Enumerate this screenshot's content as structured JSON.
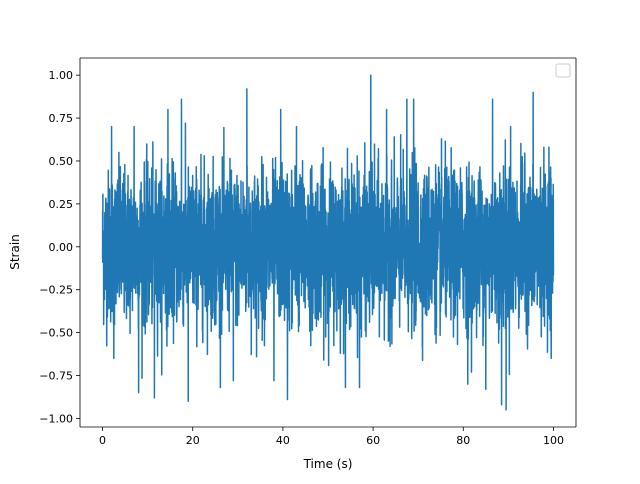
{
  "chart_data": {
    "type": "line",
    "title": "",
    "xlabel": "Time (s)",
    "ylabel": "Strain",
    "xlim": [
      -5,
      105
    ],
    "ylim": [
      -1.05,
      1.1
    ],
    "xticks": [
      0,
      20,
      40,
      60,
      80,
      100
    ],
    "xtick_labels": [
      "0",
      "20",
      "40",
      "60",
      "80",
      "100"
    ],
    "yticks": [
      -1.0,
      -0.75,
      -0.5,
      -0.25,
      0.0,
      0.25,
      0.5,
      0.75,
      1.0
    ],
    "ytick_labels": [
      "−1.00",
      "−0.75",
      "−0.50",
      "−0.25",
      "0.00",
      "0.25",
      "0.50",
      "0.75",
      "1.00"
    ],
    "grid": false,
    "legend": {
      "position": "top-right",
      "entries": []
    },
    "series": [
      {
        "color": "#1f77b4",
        "x_range": [
          0,
          100
        ],
        "description": "dense noisy signal, mostly within about -0.5 to 0.5",
        "peaks": [
          {
            "x": 59.5,
            "y": 1.0
          },
          {
            "x": 32.0,
            "y": 0.92
          },
          {
            "x": 95.5,
            "y": 0.9
          },
          {
            "x": 17.5,
            "y": 0.86
          },
          {
            "x": 67.5,
            "y": 0.86
          },
          {
            "x": 69.0,
            "y": 0.86
          },
          {
            "x": 86.5,
            "y": 0.86
          },
          {
            "x": 14.5,
            "y": 0.8
          },
          {
            "x": 39.5,
            "y": 0.8
          },
          {
            "x": 63.0,
            "y": 0.8
          },
          {
            "x": 2.0,
            "y": 0.7
          },
          {
            "x": 7.0,
            "y": 0.7
          },
          {
            "x": 43.0,
            "y": 0.7
          },
          {
            "x": 90.5,
            "y": 0.7
          },
          {
            "x": 99.0,
            "y": 0.58
          }
        ],
        "troughs": [
          {
            "x": 89.5,
            "y": -0.95
          },
          {
            "x": 88.5,
            "y": -0.92
          },
          {
            "x": 19.0,
            "y": -0.9
          },
          {
            "x": 11.5,
            "y": -0.88
          },
          {
            "x": 41.0,
            "y": -0.89
          },
          {
            "x": 8.0,
            "y": -0.85
          },
          {
            "x": 57.0,
            "y": -0.82
          },
          {
            "x": 85.0,
            "y": -0.83
          },
          {
            "x": 29.0,
            "y": -0.78
          },
          {
            "x": 38.0,
            "y": -0.78
          },
          {
            "x": 81.0,
            "y": -0.8
          },
          {
            "x": 2.5,
            "y": -0.65
          },
          {
            "x": 99.5,
            "y": -0.65
          }
        ]
      }
    ]
  }
}
